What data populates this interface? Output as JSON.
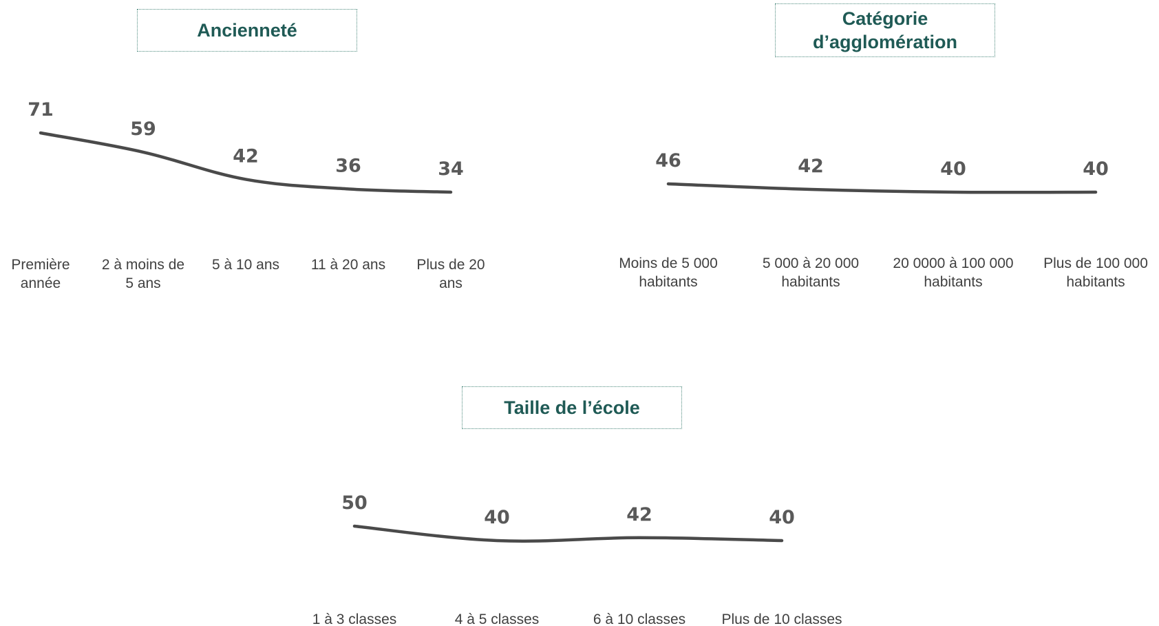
{
  "chart_data": [
    {
      "type": "line",
      "title": "Ancienneté",
      "categories": [
        "Première année",
        "2 à moins de 5 ans",
        "5 à 10 ans",
        "11 à 20 ans",
        "Plus de 20 ans"
      ],
      "category_lines": [
        [
          "Première",
          "année"
        ],
        [
          "2 à moins de",
          "5 ans"
        ],
        [
          "5 à 10 ans"
        ],
        [
          "11 à 20 ans"
        ],
        [
          "Plus de 20",
          "ans"
        ]
      ],
      "values": [
        71,
        59,
        42,
        36,
        34
      ],
      "data_labels": [
        "71",
        "59",
        "42",
        "36",
        "34"
      ],
      "line_color": "#4a4a4a",
      "grid": false,
      "legend": "none"
    },
    {
      "type": "line",
      "title": "Catégorie d’agglomération",
      "title_lines": [
        "Catégorie",
        "d’agglomération"
      ],
      "categories": [
        "Moins de 5 000 habitants",
        "5 000 à 20 000 habitants",
        "20 0000 à 100 000 habitants",
        "Plus de 100 000 habitants"
      ],
      "category_lines": [
        [
          "Moins de 5 000",
          "habitants"
        ],
        [
          "5 000 à 20 000",
          "habitants"
        ],
        [
          "20 0000 à 100 000",
          "habitants"
        ],
        [
          "Plus de 100 000",
          "habitants"
        ]
      ],
      "values": [
        46,
        42,
        40,
        40
      ],
      "data_labels": [
        "46",
        "42",
        "40",
        "40"
      ],
      "line_color": "#4a4a4a",
      "grid": false,
      "legend": "none"
    },
    {
      "type": "line",
      "title": "Taille de l’école",
      "categories": [
        "1 à 3 classes",
        "4 à 5 classes",
        "6 à 10 classes",
        "Plus de 10 classes"
      ],
      "category_lines": [
        [
          "1 à 3 classes"
        ],
        [
          "4 à 5 classes"
        ],
        [
          "6 à 10 classes"
        ],
        [
          "Plus de 10 classes"
        ]
      ],
      "values": [
        50,
        40,
        42,
        40
      ],
      "data_labels": [
        "50",
        "40",
        "42",
        "40"
      ],
      "line_color": "#4a4a4a",
      "grid": false,
      "legend": "none"
    }
  ],
  "colors": {
    "title_text": "#1f5a55",
    "title_border": "#4d8a7e",
    "label_text": "#595959",
    "category_text": "#404040"
  }
}
